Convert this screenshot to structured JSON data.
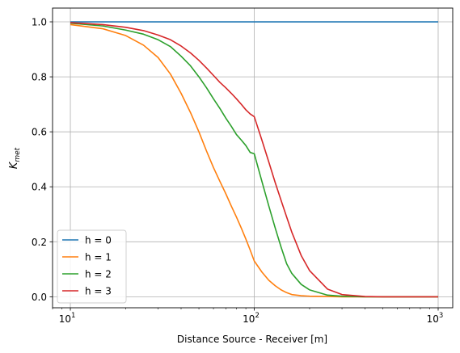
{
  "chart_data": {
    "type": "line",
    "xscale": "log",
    "xlim": [
      8,
      1200
    ],
    "ylim": [
      -0.04,
      1.05
    ],
    "xlabel": "Distance Source - Receiver [m]",
    "ylabel": "K",
    "ylabel_sub": "met",
    "grid": true,
    "legend_position": "lower-left",
    "x_ticks": [
      {
        "value": 10,
        "base": "10",
        "exp": "1"
      },
      {
        "value": 100,
        "base": "10",
        "exp": "2"
      },
      {
        "value": 1000,
        "base": "10",
        "exp": "3"
      }
    ],
    "y_ticks": [
      {
        "value": 0.0,
        "label": "0.0"
      },
      {
        "value": 0.2,
        "label": "0.2"
      },
      {
        "value": 0.4,
        "label": "0.4"
      },
      {
        "value": 0.6,
        "label": "0.6"
      },
      {
        "value": 0.8,
        "label": "0.8"
      },
      {
        "value": 1.0,
        "label": "1.0"
      }
    ],
    "series": [
      {
        "name": "h = 0",
        "color": "#1f77b4",
        "x": [
          10,
          1000
        ],
        "y": [
          1.0,
          1.0
        ]
      },
      {
        "name": "h = 1",
        "color": "#ff7f0e",
        "x": [
          10,
          15,
          20,
          25,
          30,
          35,
          40,
          45,
          50,
          55,
          60,
          65,
          70,
          75,
          80,
          85,
          90,
          95,
          100,
          110,
          120,
          130,
          140,
          150,
          160,
          180,
          200,
          250,
          300,
          400,
          500,
          700,
          1000
        ],
        "y": [
          0.99,
          0.975,
          0.95,
          0.915,
          0.87,
          0.81,
          0.74,
          0.67,
          0.6,
          0.53,
          0.47,
          0.42,
          0.375,
          0.33,
          0.29,
          0.25,
          0.21,
          0.17,
          0.13,
          0.09,
          0.06,
          0.04,
          0.025,
          0.015,
          0.008,
          0.004,
          0.002,
          0.001,
          0.0,
          0.0,
          0.0,
          0.0,
          0.0
        ]
      },
      {
        "name": "h = 2",
        "color": "#2ca02c",
        "x": [
          10,
          15,
          20,
          25,
          30,
          35,
          40,
          45,
          50,
          55,
          60,
          65,
          70,
          75,
          80,
          85,
          90,
          95,
          100,
          110,
          120,
          130,
          140,
          150,
          160,
          180,
          200,
          250,
          300,
          400,
          500,
          700,
          1000
        ],
        "y": [
          0.995,
          0.985,
          0.97,
          0.955,
          0.935,
          0.91,
          0.875,
          0.84,
          0.8,
          0.76,
          0.72,
          0.685,
          0.65,
          0.62,
          0.59,
          0.57,
          0.55,
          0.525,
          0.52,
          0.42,
          0.33,
          0.25,
          0.18,
          0.12,
          0.085,
          0.045,
          0.025,
          0.006,
          0.002,
          0.0,
          0.0,
          0.0,
          0.0
        ]
      },
      {
        "name": "h = 3",
        "color": "#d62728",
        "x": [
          10,
          15,
          20,
          25,
          30,
          35,
          40,
          45,
          50,
          55,
          60,
          65,
          70,
          75,
          80,
          85,
          90,
          95,
          100,
          110,
          120,
          130,
          140,
          150,
          160,
          180,
          200,
          250,
          300,
          400,
          500,
          700,
          1000
        ],
        "y": [
          0.997,
          0.99,
          0.98,
          0.968,
          0.952,
          0.935,
          0.912,
          0.887,
          0.86,
          0.832,
          0.805,
          0.78,
          0.76,
          0.74,
          0.72,
          0.7,
          0.68,
          0.665,
          0.655,
          0.57,
          0.49,
          0.415,
          0.35,
          0.29,
          0.235,
          0.15,
          0.095,
          0.028,
          0.008,
          0.001,
          0.0,
          0.0,
          0.0
        ]
      }
    ]
  }
}
